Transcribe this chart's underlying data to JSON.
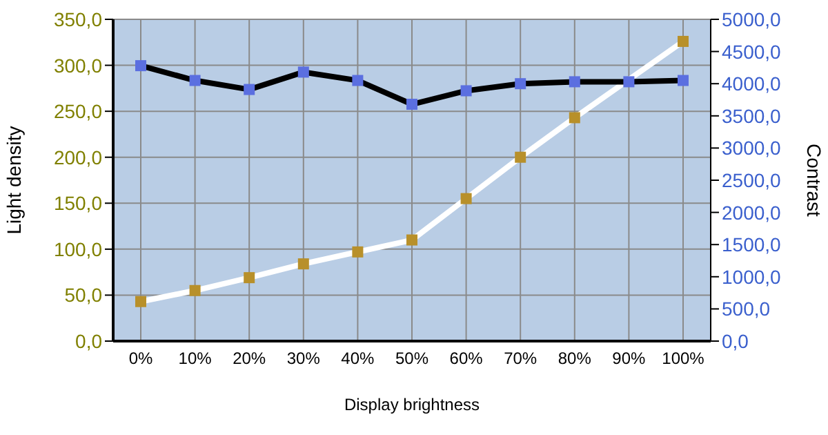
{
  "chart_data": {
    "type": "line",
    "xlabel": "Display brightness",
    "ylabel": "Light density",
    "y2label": "Contrast",
    "categories": [
      "0%",
      "10%",
      "20%",
      "30%",
      "40%",
      "50%",
      "60%",
      "70%",
      "80%",
      "90%",
      "100%"
    ],
    "series": [
      {
        "color": "#ffffff",
        "colors": [
          "#b8902a",
          "#b8902a",
          "#b8902a",
          "#b8902a",
          "#b8902a",
          "#b8902a",
          "#b8902a",
          "#b8902a",
          "#b8902a",
          "#b8902a",
          "#b8902a"
        ],
        "values": [
          43,
          55,
          69,
          84,
          97,
          110,
          155,
          200,
          243,
          null,
          326
        ]
      },
      {
        "color": "#000000",
        "colors": [
          "#5b6fe0",
          "#5b6fe0",
          "#5b6fe0",
          "#5b6fe0",
          "#5b6fe0",
          "#5b6fe0",
          "#5b6fe0",
          "#5b6fe0",
          "#5b6fe0",
          "#5b6fe0",
          "#5b6fe0"
        ],
        "axis": "y2",
        "values": [
          4280,
          4050,
          3910,
          4180,
          4050,
          3680,
          3890,
          4000,
          4030,
          4030,
          4050
        ]
      }
    ],
    "ylim": [
      0,
      350
    ],
    "yticks": [
      {
        "value": 0,
        "label": "0,0"
      },
      {
        "value": 50,
        "label": "50,0"
      },
      {
        "value": 100,
        "label": "100,0"
      },
      {
        "value": 150,
        "label": "150,0"
      },
      {
        "value": 200,
        "label": "200,0"
      },
      {
        "value": 250,
        "label": "250,0"
      },
      {
        "value": 300,
        "label": "300,0"
      },
      {
        "value": 350,
        "label": "350,0"
      }
    ],
    "y2lim": [
      0,
      5000
    ],
    "y2ticks": [
      {
        "value": 0,
        "label": "0,0"
      },
      {
        "value": 500,
        "label": "500,0"
      },
      {
        "value": 1000,
        "label": "1000,0"
      },
      {
        "value": 1500,
        "label": "1500,0"
      },
      {
        "value": 2000,
        "label": "2000,0"
      },
      {
        "value": 2500,
        "label": "2500,0"
      },
      {
        "value": 3000,
        "label": "3000,0"
      },
      {
        "value": 3500,
        "label": "3500,0"
      },
      {
        "value": 4000,
        "label": "4000,0"
      },
      {
        "value": 4500,
        "label": "4500,0"
      },
      {
        "value": 5000,
        "label": "5000,0"
      }
    ],
    "grid": true,
    "marker": "square",
    "line_style": "solid"
  }
}
